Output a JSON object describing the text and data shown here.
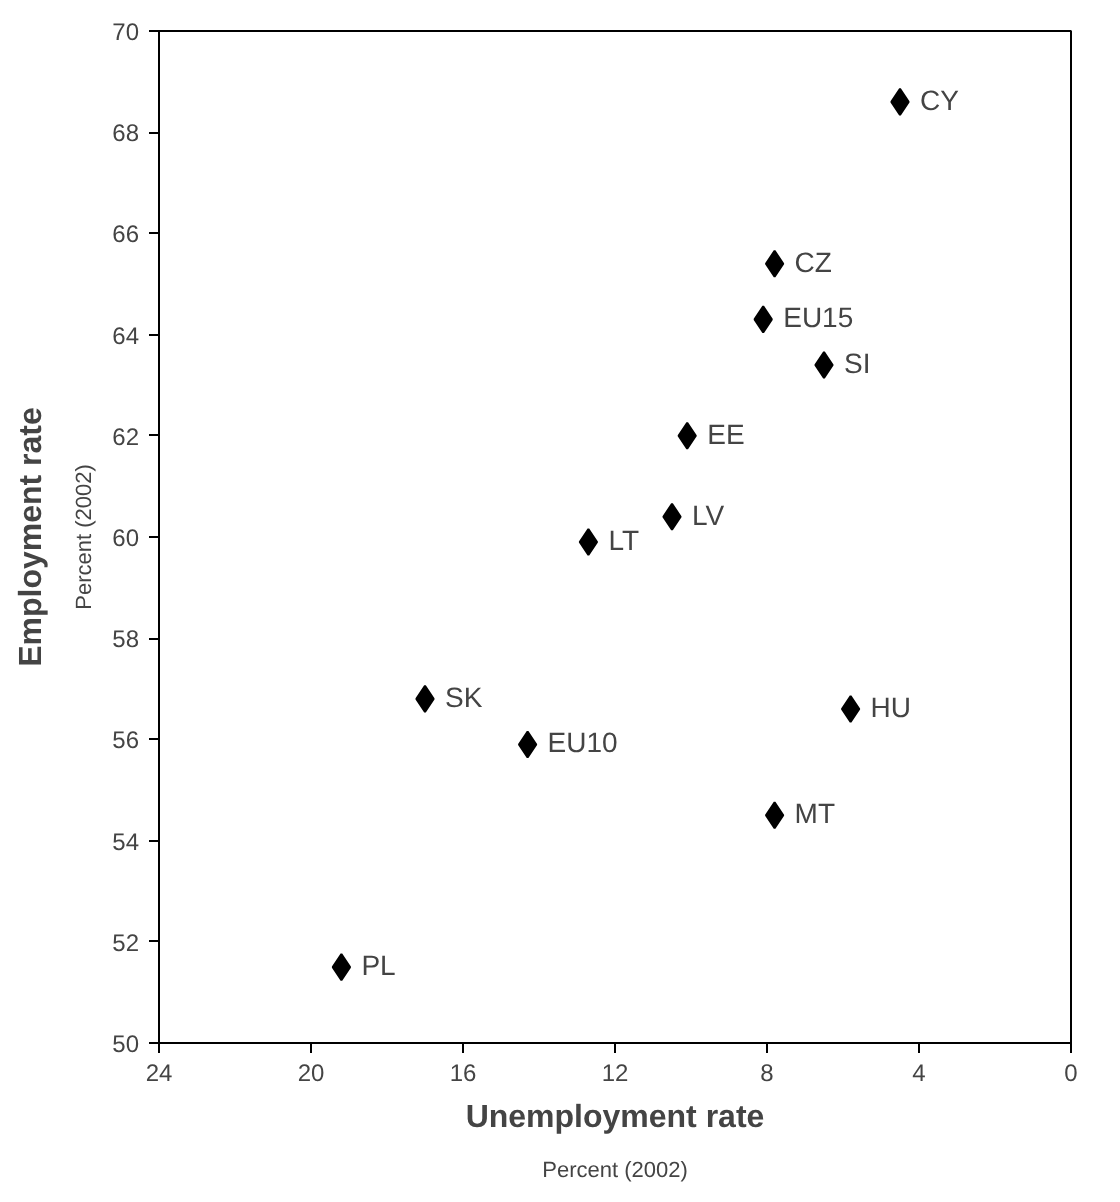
{
  "chart_data": {
    "type": "scatter",
    "xlabel": "Unemployment rate\nPercent (2002)",
    "ylabel": "Employment rate",
    "xlim": [
      24,
      0
    ],
    "ylim": [
      50,
      70
    ],
    "xticks": [
      24,
      20,
      16,
      12,
      8,
      4,
      0
    ],
    "yticks": [
      50,
      52,
      54,
      56,
      58,
      60,
      62,
      64,
      66,
      68,
      70
    ],
    "grid": false,
    "marker": "diamond",
    "series": [
      {
        "color": "#000000",
        "x": [
          4.5,
          7.8,
          8.1,
          6.5,
          10.1,
          10.5,
          12.7,
          17.0,
          14.3,
          5.8,
          7.8,
          19.2
        ],
        "values": [
          68.6,
          65.4,
          64.3,
          63.4,
          62.0,
          60.4,
          59.9,
          56.8,
          55.9,
          56.6,
          54.5,
          51.5
        ]
      }
    ],
    "annotations": [
      "Percent (2002)",
      {
        "text": "CY",
        "x": 4.5,
        "y": 68.6
      },
      {
        "text": "CZ",
        "x": 7.8,
        "y": 65.4
      },
      {
        "text": "EU15",
        "x": 8.1,
        "y": 64.3
      },
      {
        "text": "SI",
        "x": 6.5,
        "y": 63.4
      },
      {
        "text": "EE",
        "x": 10.1,
        "y": 62.0
      },
      {
        "text": "LV",
        "x": 10.5,
        "y": 60.4
      },
      {
        "text": "LT",
        "x": 12.7,
        "y": 59.9
      },
      {
        "text": "SK",
        "x": 17.0,
        "y": 56.8
      },
      {
        "text": "EU10",
        "x": 14.3,
        "y": 55.9
      },
      {
        "text": "HU",
        "x": 5.8,
        "y": 56.6
      },
      {
        "text": "MT",
        "x": 7.8,
        "y": 54.5
      },
      {
        "text": "PL",
        "x": 19.2,
        "y": 51.5
      }
    ]
  }
}
